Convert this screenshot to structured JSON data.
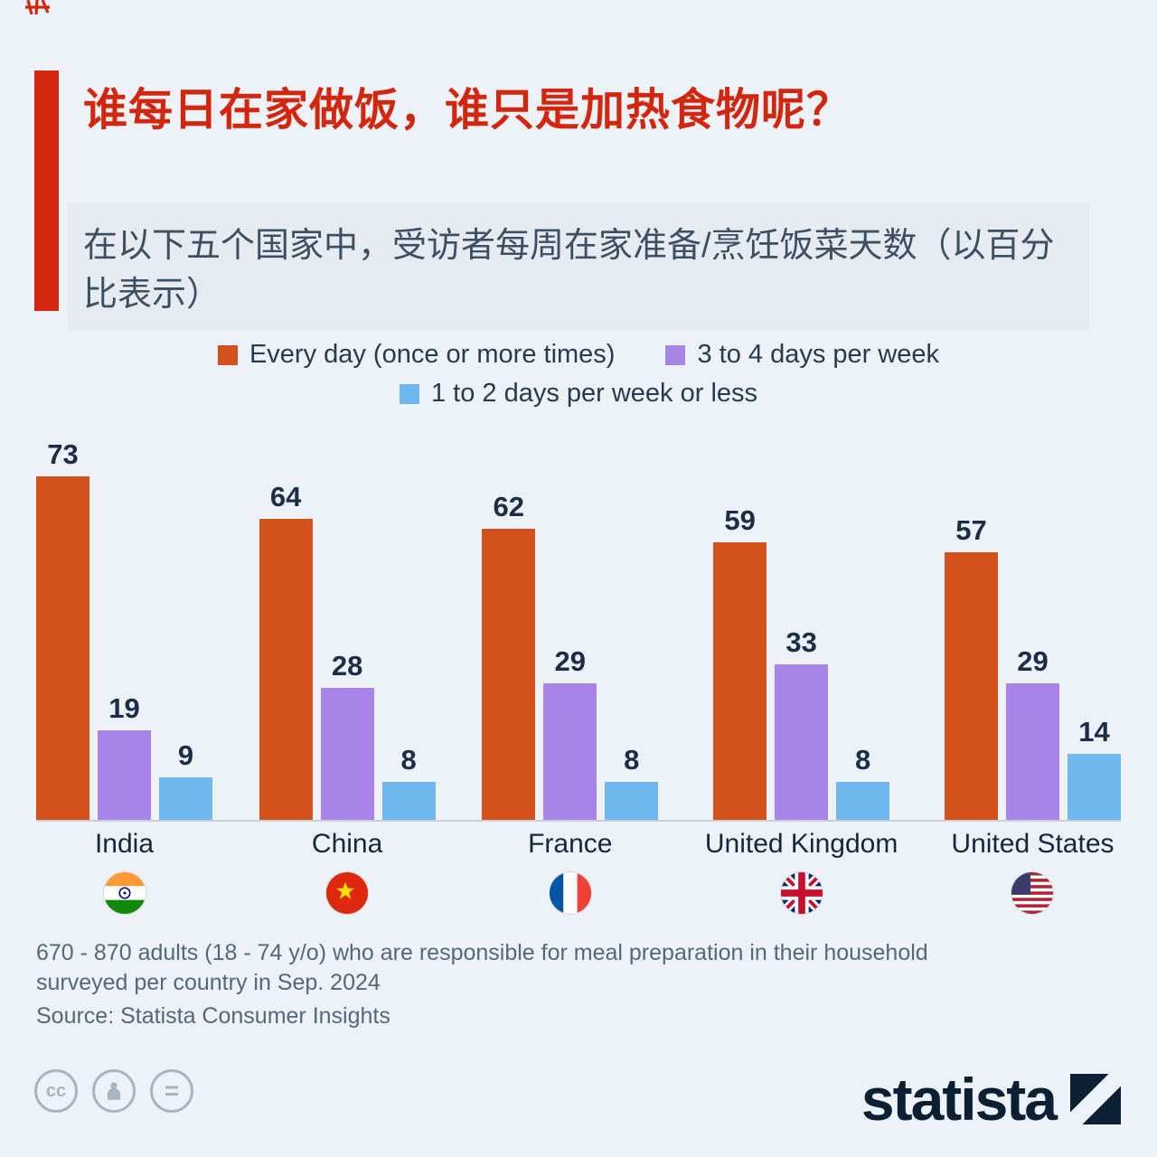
{
  "header": {
    "title": "谁每日在家做饭，谁只是加热食物呢？",
    "subtitle": "在以下五个国家中，受访者每周在家准备/烹饪饭菜天数（以百分比表示）"
  },
  "chart_data": {
    "type": "bar",
    "title": "谁每日在家做饭，谁只是加热食物呢？",
    "categories": [
      "India",
      "China",
      "France",
      "United Kingdom",
      "United States"
    ],
    "flags": [
      "india-flag",
      "china-flag",
      "france-flag",
      "united-kingdom-flag",
      "united-states-flag"
    ],
    "series": [
      {
        "name": "Every day (once or more times)",
        "color": "#d4501c",
        "values": [
          73,
          64,
          62,
          59,
          57
        ]
      },
      {
        "name": "3 to 4 days per week",
        "color": "#a884e8",
        "values": [
          19,
          28,
          29,
          33,
          29
        ]
      },
      {
        "name": "1 to 2 days per week or less",
        "color": "#6fb8f0",
        "values": [
          9,
          8,
          8,
          8,
          14
        ]
      }
    ],
    "unit": "percent",
    "ylim": [
      0,
      80
    ],
    "value_labels": true,
    "legend_position": "top",
    "grid": false
  },
  "footer": {
    "note": "670 - 870 adults (18 - 74 y/o) who are responsible for meal preparation in their household surveyed per country in Sep. 2024",
    "source": "Source: Statista Consumer Insights",
    "brand": "statista",
    "badges": {
      "cc_glyph": "cc",
      "equal_glyph": "="
    }
  },
  "colors": {
    "background": "#edf2f8",
    "title": "#d2270e",
    "accent_bar": "#d2270e",
    "value_text": "#1b2d47",
    "muted_text": "#54677d",
    "brand_text": "#0c2033"
  }
}
